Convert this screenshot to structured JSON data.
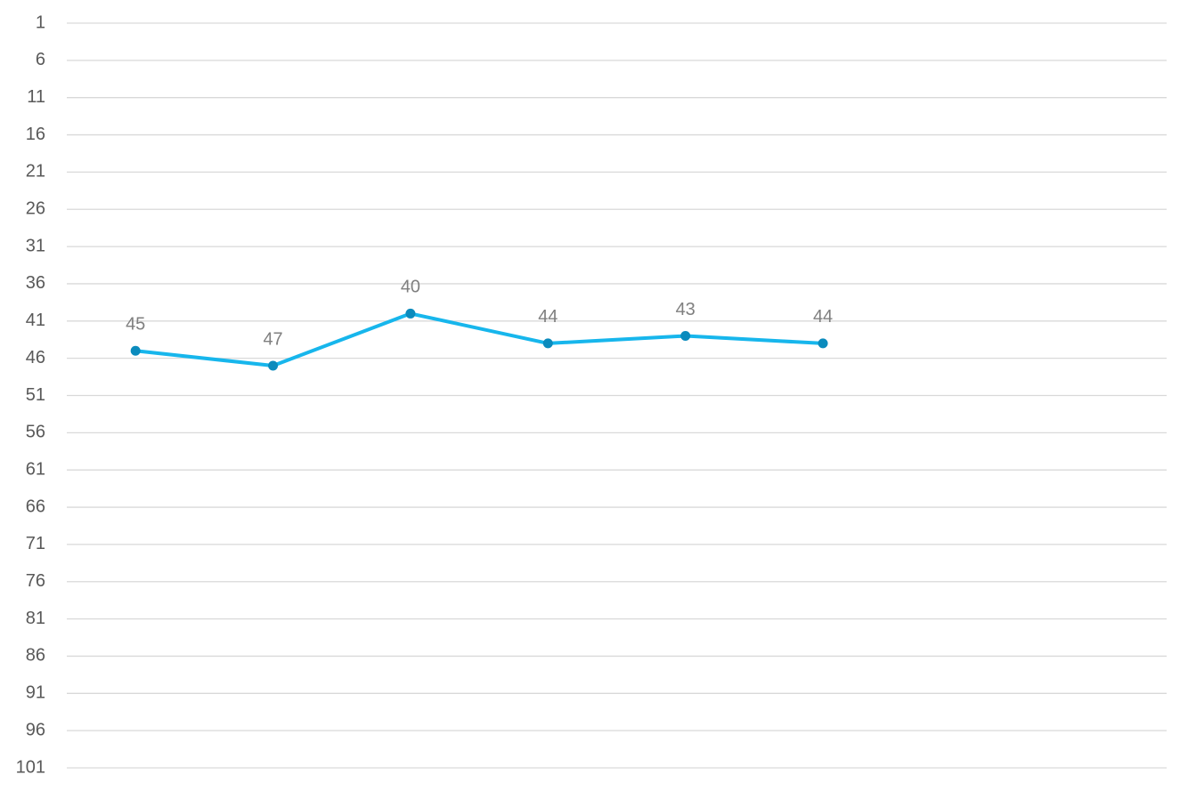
{
  "chart_data": {
    "type": "line",
    "categories": [
      null,
      null,
      null,
      null,
      null,
      null,
      null,
      null
    ],
    "series": [
      {
        "color": "#17b6ec",
        "marker_color": "#0b8bbd",
        "values": [
          45,
          47,
          40,
          44,
          43,
          44,
          null,
          null
        ]
      }
    ],
    "ylim": [
      1,
      101
    ],
    "y_inverted": true,
    "yticks": [
      1,
      6,
      11,
      16,
      21,
      26,
      31,
      36,
      41,
      46,
      51,
      56,
      61,
      66,
      71,
      76,
      81,
      86,
      91,
      96,
      101
    ],
    "grid": true,
    "data_labels": true
  }
}
